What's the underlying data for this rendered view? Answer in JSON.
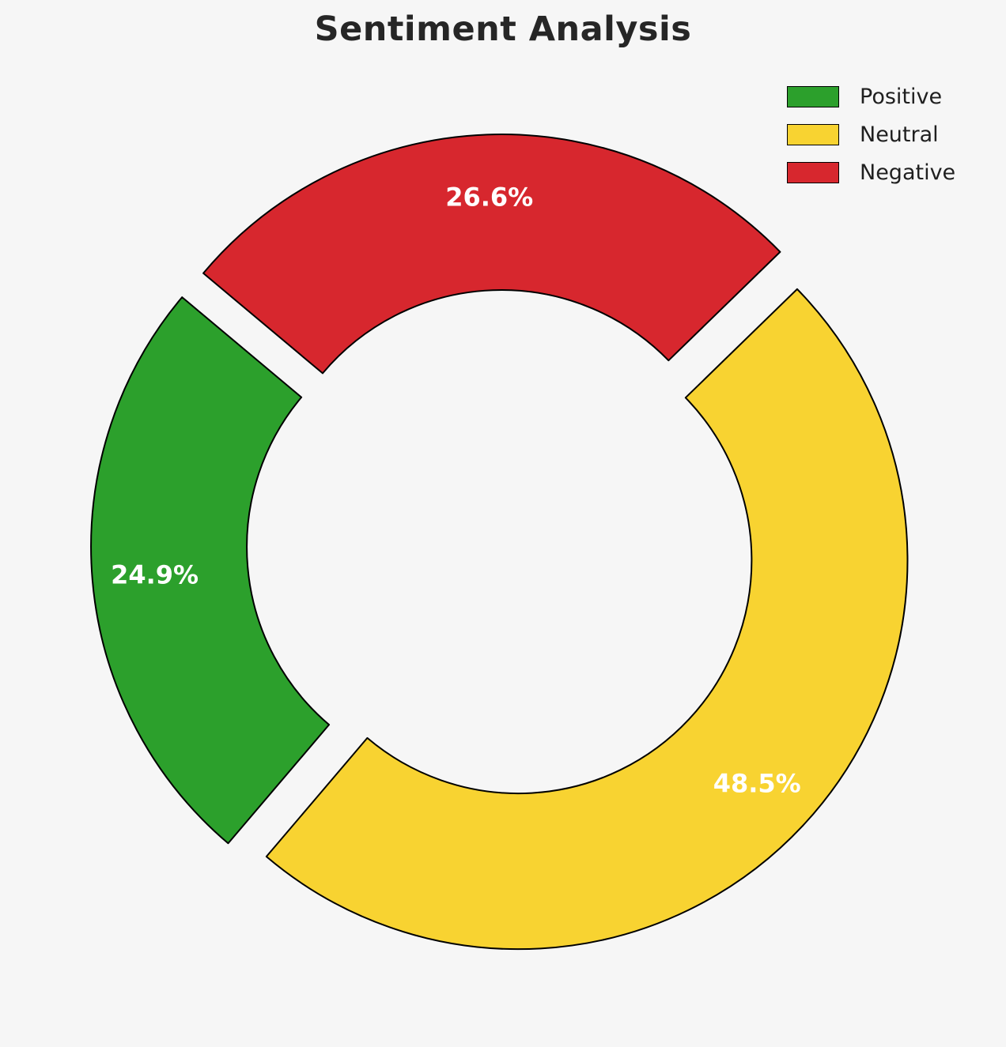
{
  "page": {
    "background_color": "#f6f6f6"
  },
  "chart_data": {
    "type": "pie",
    "subtype": "donut",
    "title": "Sentiment Analysis",
    "labels": [
      "Positive",
      "Neutral",
      "Negative"
    ],
    "values": [
      24.9,
      48.5,
      26.6
    ],
    "autopct_labels": [
      "24.9%",
      "48.5%",
      "26.6%"
    ],
    "colors": [
      "#2ca02c",
      "#f8d331",
      "#d7272e"
    ],
    "label_color": "#ffffff",
    "edge_color": "#000000",
    "start_angle": 140,
    "counterclockwise": true,
    "explode": true,
    "legend": {
      "position": "upper right",
      "entries": [
        "Positive",
        "Neutral",
        "Negative"
      ]
    }
  }
}
